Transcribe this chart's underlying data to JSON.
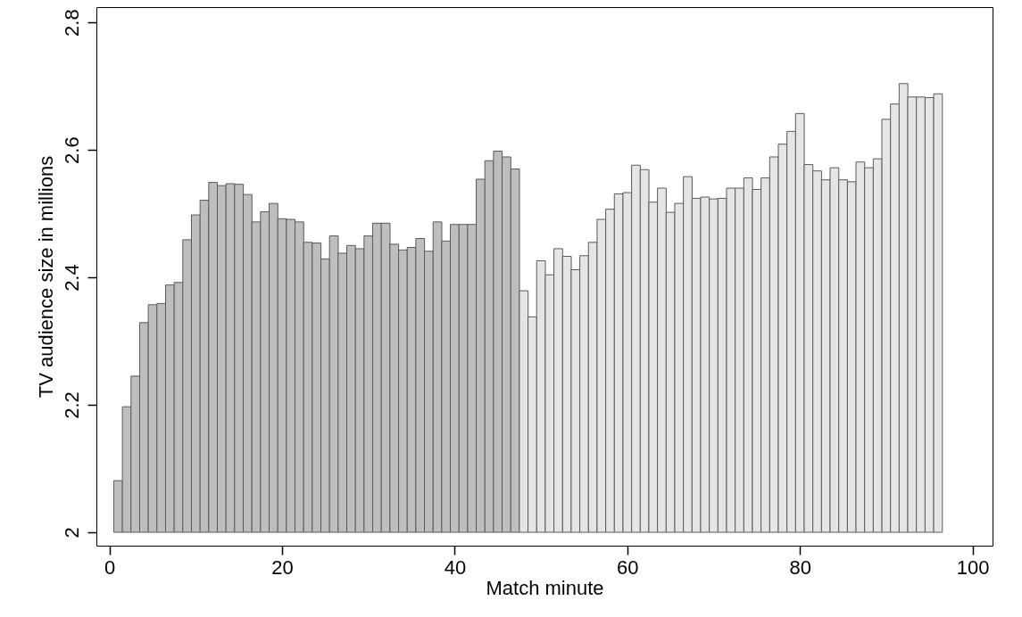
{
  "chart_data": {
    "type": "bar",
    "xlabel": "Match minute",
    "ylabel": "TV audience size in millions",
    "xlim": [
      -1,
      101.8
    ],
    "xticks": [
      0,
      20,
      40,
      60,
      80,
      100
    ],
    "ylim": [
      1.979,
      2.824
    ],
    "yticks": [
      2,
      2.2,
      2.4,
      2.6,
      2.8
    ],
    "grid": false,
    "series": [
      {
        "color": "#bebebe",
        "x": [
          1,
          2,
          3,
          4,
          5,
          6,
          7,
          8,
          9,
          10,
          11,
          12,
          13,
          14,
          15,
          16,
          17,
          18,
          19,
          20,
          21,
          22,
          23,
          24,
          25,
          26,
          27,
          28,
          29,
          30,
          31,
          32,
          33,
          34,
          35,
          36,
          37,
          38,
          39,
          40,
          41,
          42,
          43,
          44,
          45,
          46,
          47
        ],
        "base": [
          2,
          2,
          2,
          2,
          2,
          2,
          2,
          2,
          2,
          2,
          2,
          2,
          2,
          2,
          2,
          2,
          2,
          2,
          2,
          2,
          2,
          2,
          2,
          2,
          2,
          2,
          2,
          2,
          2,
          2,
          2,
          2,
          2,
          2,
          2,
          2,
          2,
          2,
          2,
          2,
          2,
          2,
          2,
          2,
          2,
          2,
          2
        ],
        "values": [
          0.081,
          0.197,
          0.245,
          0.329,
          0.357,
          0.359,
          0.388,
          0.392,
          0.459,
          0.498,
          0.521,
          0.549,
          0.544,
          0.547,
          0.546,
          0.53,
          0.487,
          0.503,
          0.516,
          0.492,
          0.491,
          0.487,
          0.455,
          0.454,
          0.429,
          0.465,
          0.438,
          0.45,
          0.445,
          0.465,
          0.485,
          0.485,
          0.452,
          0.443,
          0.447,
          0.461,
          0.441,
          0.487,
          0.457,
          0.483,
          0.483,
          0.483,
          0.554,
          0.583,
          0.598,
          0.589,
          0.57
        ]
      },
      {
        "color": "#e5e5e5",
        "x": [
          48,
          49,
          50,
          51,
          52,
          53,
          54,
          55,
          56,
          57,
          58,
          59,
          60,
          61,
          62,
          63,
          64,
          65,
          66,
          67,
          68,
          69,
          70,
          71,
          72,
          73,
          74,
          75,
          76,
          77,
          78,
          79,
          80,
          81,
          82,
          83,
          84,
          85,
          86,
          87,
          88,
          89,
          90,
          91,
          92,
          93,
          94,
          95,
          96
        ],
        "base": [
          2,
          2,
          2,
          2,
          2,
          2,
          2,
          2,
          2,
          2,
          2,
          2,
          2,
          2,
          2,
          2,
          2,
          2,
          2,
          2,
          2,
          2,
          2,
          2,
          2,
          2,
          2,
          2,
          2,
          2,
          2,
          2,
          2,
          2,
          2,
          2,
          2,
          2,
          2,
          2,
          2,
          2,
          2,
          2,
          2,
          2,
          2,
          2,
          2
        ],
        "values": [
          0.379,
          0.338,
          0.426,
          0.404,
          0.445,
          0.433,
          0.412,
          0.434,
          0.455,
          0.491,
          0.507,
          0.531,
          0.533,
          0.576,
          0.569,
          0.518,
          0.54,
          0.502,
          0.516,
          0.558,
          0.524,
          0.526,
          0.523,
          0.524,
          0.54,
          0.54,
          0.556,
          0.538,
          0.556,
          0.589,
          0.609,
          0.629,
          0.657,
          0.577,
          0.567,
          0.553,
          0.572,
          0.553,
          0.55,
          0.581,
          0.572,
          0.586,
          0.648,
          0.672,
          0.704,
          0.683,
          0.683,
          0.682,
          0.688
        ]
      }
    ]
  }
}
